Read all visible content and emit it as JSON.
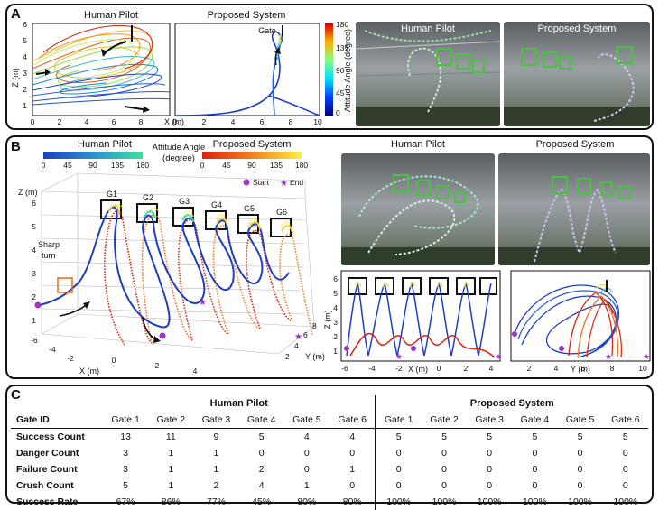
{
  "panels": {
    "a": {
      "label": "A",
      "human_title": "Human Pilot",
      "proposed_title": "Proposed System",
      "photo_human_title": "Human Pilot",
      "photo_proposed_title": "Proposed System",
      "gate_label": "Gate",
      "zaxis_label": "Z (m)",
      "xaxis_label": "X (m)",
      "x_ticks": [
        "0",
        "2",
        "4",
        "6",
        "8",
        "10"
      ],
      "z_ticks": [
        "1",
        "2",
        "3",
        "4",
        "5",
        "6"
      ],
      "colorbar_label": "Attitude Angle (degree)",
      "colorbar_ticks": [
        "0",
        "45",
        "90",
        "135",
        "180"
      ]
    },
    "b": {
      "label": "B",
      "human_cb_title": "Human Pilot",
      "attitude_title_1": "Attitude Angle",
      "attitude_title_2": "(degree)",
      "proposed_cb_title": "Proposed System",
      "cb_ticks": [
        "0",
        "45",
        "90",
        "135",
        "180"
      ],
      "start_label": "Start",
      "end_label": "End",
      "sharp_turn_1": "Sharp",
      "sharp_turn_2": "turn",
      "gate_labels": [
        "G1",
        "G2",
        "G3",
        "G4",
        "G5",
        "G6"
      ],
      "photo_human_title": "Human Pilot",
      "photo_proposed_title": "Proposed System",
      "axis3d": {
        "z_label": "Z (m)",
        "x_label": "X (m)",
        "y_label": "Y (m)",
        "z_ticks": [
          "1",
          "2",
          "3",
          "4",
          "5",
          "6"
        ],
        "x_ticks": [
          "-6",
          "-4",
          "-2",
          "0",
          "2",
          "4"
        ],
        "y_ticks": [
          "2",
          "4",
          "6",
          "8"
        ]
      },
      "front_view": {
        "z_label": "Z (m)",
        "x_label": "X (m)",
        "x_ticks": [
          "-6",
          "-4",
          "-2",
          "0",
          "2",
          "4"
        ],
        "z_ticks": [
          "1",
          "2",
          "3",
          "4",
          "5",
          "6"
        ]
      },
      "side_view": {
        "y_label": "Y (m)",
        "y_ticks": [
          "2",
          "4",
          "6",
          "8",
          "10"
        ]
      }
    },
    "c": {
      "label": "C"
    }
  },
  "colors": {
    "human_low": "#1f3fbf",
    "human_high": "#3fe0a0",
    "proposed_low": "#e02010",
    "proposed_high": "#f8f040",
    "marker": "#a030d0",
    "gate": "#111111"
  },
  "chart_data": {
    "type": "table",
    "columns_group_1": "Human Pilot",
    "columns_group_2": "Proposed System",
    "row_header_label": "Gate ID",
    "gate_ids": [
      "Gate 1",
      "Gate 2",
      "Gate 3",
      "Gate 4",
      "Gate 5",
      "Gate 6"
    ],
    "rows": [
      {
        "name": "Success Count",
        "human": [
          "13",
          "11",
          "9",
          "5",
          "4",
          "4"
        ],
        "proposed": [
          "5",
          "5",
          "5",
          "5",
          "5",
          "5"
        ]
      },
      {
        "name": "Danger Count",
        "human": [
          "3",
          "1",
          "1",
          "0",
          "0",
          "0"
        ],
        "proposed": [
          "0",
          "0",
          "0",
          "0",
          "0",
          "0"
        ]
      },
      {
        "name": "Failure Count",
        "human": [
          "3",
          "1",
          "1",
          "2",
          "0",
          "1"
        ],
        "proposed": [
          "0",
          "0",
          "0",
          "0",
          "0",
          "0"
        ]
      },
      {
        "name": "Crush Count",
        "human": [
          "5",
          "1",
          "2",
          "4",
          "1",
          "0"
        ],
        "proposed": [
          "0",
          "0",
          "0",
          "0",
          "0",
          "0"
        ]
      },
      {
        "name": "Success Rate",
        "human": [
          "67%",
          "86%",
          "77%",
          "45%",
          "80%",
          "80%"
        ],
        "proposed": [
          "100%",
          "100%",
          "100%",
          "100%",
          "100%",
          "100%"
        ]
      }
    ]
  }
}
